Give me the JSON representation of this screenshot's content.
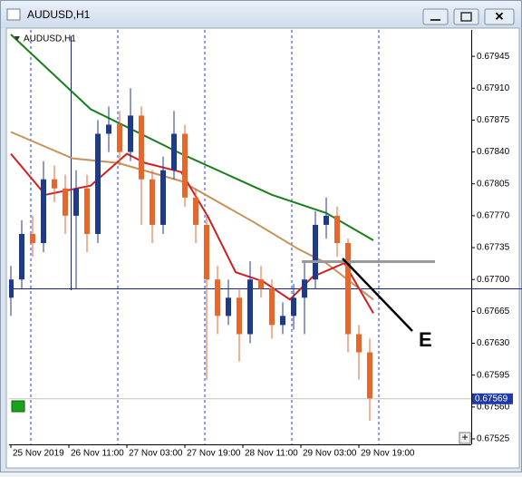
{
  "window_title": "AUDUSD,H1",
  "chart_data": {
    "type": "candlestick",
    "symbol_label": "AUDUSD,H1",
    "up_color": "#1e3a8c",
    "down_color": "#e8662a",
    "x": [
      0,
      3,
      6,
      9,
      12,
      15,
      18,
      21,
      24,
      27,
      30,
      33,
      36,
      39,
      42,
      45,
      48,
      51,
      54,
      57,
      60,
      63,
      66,
      69,
      72,
      75,
      78,
      81,
      84,
      87,
      90,
      93,
      96,
      99
    ],
    "open": [
      0.6768,
      0.677,
      0.6775,
      0.6774,
      0.6781,
      0.678,
      0.6777,
      0.678,
      0.6775,
      0.6786,
      0.6787,
      0.6784,
      0.6788,
      0.6781,
      0.6776,
      0.6782,
      0.6786,
      0.6779,
      0.6776,
      0.677,
      0.6766,
      0.6768,
      0.6764,
      0.677,
      0.6769,
      0.6765,
      0.6766,
      0.6768,
      0.677,
      0.6776,
      0.6777,
      0.6774,
      0.6764,
      0.6762
    ],
    "high": [
      0.67715,
      0.67765,
      0.6777,
      0.6783,
      0.67825,
      0.67815,
      0.6782,
      0.67815,
      0.67875,
      0.6789,
      0.67885,
      0.6791,
      0.6789,
      0.6782,
      0.67835,
      0.67885,
      0.6787,
      0.678,
      0.6777,
      0.67715,
      0.677,
      0.6769,
      0.6772,
      0.67715,
      0.677,
      0.67675,
      0.67695,
      0.6772,
      0.67775,
      0.6779,
      0.6778,
      0.67745,
      0.6765,
      0.67635
    ],
    "low": [
      0.6766,
      0.6769,
      0.67725,
      0.6773,
      0.67785,
      0.6775,
      0.6769,
      0.6773,
      0.6774,
      0.6784,
      0.67825,
      0.6783,
      0.6776,
      0.6774,
      0.6775,
      0.6781,
      0.6778,
      0.6774,
      0.6759,
      0.6764,
      0.6765,
      0.6761,
      0.6763,
      0.6768,
      0.67635,
      0.6764,
      0.67645,
      0.6764,
      0.6769,
      0.67745,
      0.67725,
      0.6762,
      0.6759,
      0.67545
    ],
    "close": [
      0.677,
      0.6775,
      0.6774,
      0.6781,
      0.678,
      0.6777,
      0.678,
      0.6775,
      0.6786,
      0.6787,
      0.6784,
      0.6788,
      0.6781,
      0.6776,
      0.6782,
      0.6786,
      0.6779,
      0.6776,
      0.677,
      0.6766,
      0.6768,
      0.6764,
      0.677,
      0.6769,
      0.6765,
      0.6766,
      0.6768,
      0.677,
      0.6776,
      0.6777,
      0.6774,
      0.6764,
      0.6762,
      0.67569
    ],
    "series": [
      {
        "color": "#1a7f1a",
        "x": [
          0,
          22,
          47,
          72,
          87,
          100
        ],
        "values": [
          0.67969,
          0.67887,
          0.67838,
          0.67793,
          0.67773,
          0.67743
        ]
      },
      {
        "color": "#c8935a",
        "x": [
          0,
          17,
          29.5,
          47,
          67,
          79.5,
          87,
          100
        ],
        "values": [
          0.67862,
          0.67833,
          0.67828,
          0.67808,
          0.67763,
          0.67733,
          0.67718,
          0.67678
        ]
      },
      {
        "color": "#d11f1f",
        "x": [
          0,
          9.5,
          22,
          32,
          37,
          47,
          54.5,
          62,
          69.5,
          77,
          83.25,
          92,
          100
        ],
        "values": [
          0.67838,
          0.67793,
          0.67803,
          0.67838,
          0.67828,
          0.67818,
          0.67768,
          0.67708,
          0.67698,
          0.67678,
          0.67703,
          0.67718,
          0.67663
        ]
      }
    ],
    "xlim": [
      -0.5,
      127
    ],
    "ylim": [
      0.67519,
      0.67974
    ],
    "yticks": [
      0.67945,
      {
        "value": 0.6791,
        "label": "0.67910"
      },
      0.67875,
      {
        "value": 0.6784,
        "label": "0.67840"
      },
      0.67805,
      {
        "value": 0.6777,
        "label": "0.67770"
      },
      0.67735,
      {
        "value": 0.677,
        "label": "0.67700"
      },
      0.67665,
      {
        "value": 0.6763,
        "label": "0.67630"
      },
      0.67595,
      {
        "value": 0.6756,
        "label": "0.67560"
      },
      0.67525
    ],
    "xticks": [
      {
        "value": 0,
        "label": "25 Nov 2019"
      },
      {
        "value": 16,
        "label": "26 Nov 11:00"
      },
      {
        "value": 32,
        "label": "27 Nov 03:00"
      },
      {
        "value": 48,
        "label": "27 Nov 19:00"
      },
      {
        "value": 64,
        "label": "28 Nov 11:00"
      },
      {
        "value": 80,
        "label": "29 Nov 03:00"
      },
      {
        "value": 96,
        "label": "29 Nov 19:00"
      }
    ],
    "annotation": "E"
  }
}
